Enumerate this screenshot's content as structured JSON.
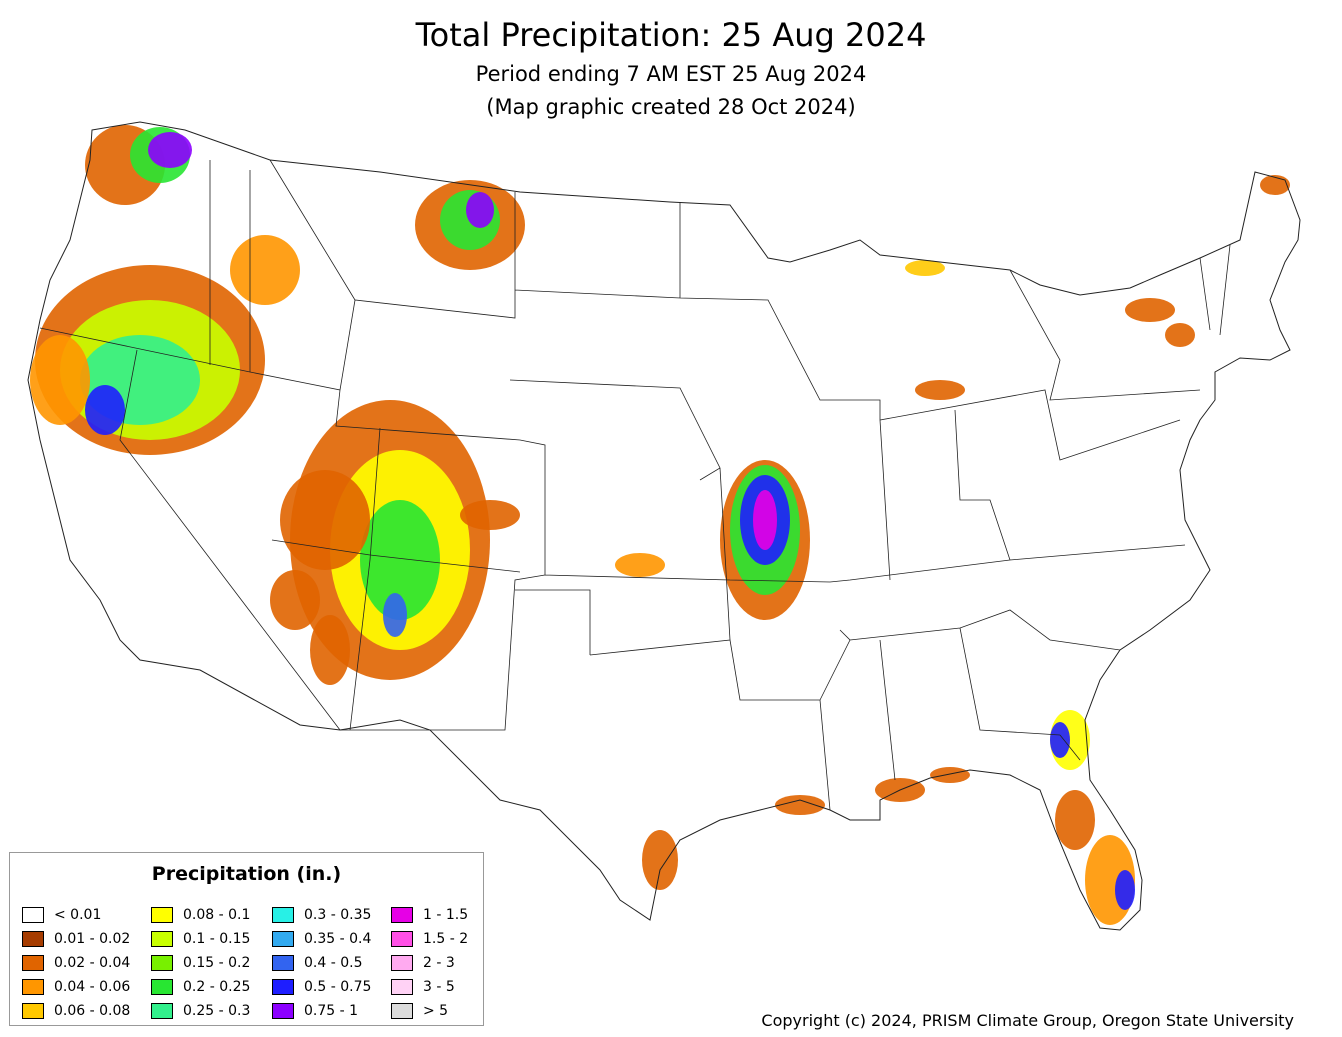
{
  "header": {
    "title": "Total Precipitation: 25 Aug 2024",
    "subtitle": "Period ending 7 AM EST 25 Aug 2024",
    "created": "(Map graphic created 28 Oct 2024)"
  },
  "legend": {
    "title": "Precipitation (in.)",
    "items": [
      {
        "label": "< 0.01",
        "color": "#ffffff"
      },
      {
        "label": "0.01 - 0.02",
        "color": "#a63c00"
      },
      {
        "label": "0.02 - 0.04",
        "color": "#e06400"
      },
      {
        "label": "0.04 - 0.06",
        "color": "#ff9600"
      },
      {
        "label": "0.06 - 0.08",
        "color": "#ffc800"
      },
      {
        "label": "0.08 - 0.1",
        "color": "#ffff00"
      },
      {
        "label": "0.1 - 0.15",
        "color": "#c8ff00"
      },
      {
        "label": "0.15 - 0.2",
        "color": "#78f000"
      },
      {
        "label": "0.2 - 0.25",
        "color": "#28e632"
      },
      {
        "label": "0.25 - 0.3",
        "color": "#32f08c"
      },
      {
        "label": "0.3 - 0.35",
        "color": "#28f0e6"
      },
      {
        "label": "0.35 - 0.4",
        "color": "#32aaf0"
      },
      {
        "label": "0.4 - 0.5",
        "color": "#3264f0"
      },
      {
        "label": "0.5 - 0.75",
        "color": "#1e1eff"
      },
      {
        "label": "0.75 - 1",
        "color": "#8c00ff"
      },
      {
        "label": "1 - 1.5",
        "color": "#e600e6"
      },
      {
        "label": "1.5 - 2",
        "color": "#ff50e6"
      },
      {
        "label": "2 - 3",
        "color": "#ffaaf0"
      },
      {
        "label": "3 - 5",
        "color": "#ffd2f5"
      },
      {
        "label": "> 5",
        "color": "#dcdcdc"
      }
    ]
  },
  "copyright": "Copyright (c) 2024, PRISM Climate Group, Oregon State University"
}
